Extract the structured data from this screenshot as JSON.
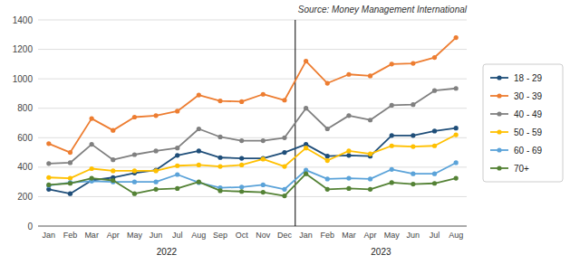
{
  "chart_data": {
    "type": "line",
    "title": "Source: Money Management International",
    "categories": [
      "Jan",
      "Feb",
      "Mar",
      "Apr",
      "May",
      "Jun",
      "Jul",
      "Aug",
      "Sep",
      "Oct",
      "Nov",
      "Dec",
      "Jan",
      "Feb",
      "Mar",
      "Apr",
      "May",
      "Jun",
      "Jul",
      "Aug"
    ],
    "series": [
      {
        "name": "18 - 29",
        "color": "#1f4e79",
        "values": [
          250,
          220,
          310,
          330,
          360,
          380,
          480,
          510,
          465,
          460,
          460,
          500,
          555,
          475,
          480,
          475,
          615,
          615,
          645,
          665
        ]
      },
      {
        "name": "30 - 39",
        "color": "#ed7d31",
        "values": [
          560,
          500,
          730,
          650,
          740,
          750,
          780,
          890,
          850,
          845,
          895,
          855,
          1120,
          970,
          1030,
          1020,
          1100,
          1105,
          1145,
          1280
        ]
      },
      {
        "name": "40 - 49",
        "color": "#808080",
        "values": [
          425,
          430,
          555,
          450,
          485,
          510,
          530,
          660,
          605,
          580,
          580,
          600,
          800,
          660,
          750,
          720,
          820,
          825,
          920,
          935
        ]
      },
      {
        "name": "50 - 59",
        "color": "#ffc000",
        "values": [
          330,
          325,
          390,
          375,
          375,
          375,
          410,
          415,
          405,
          415,
          455,
          405,
          530,
          445,
          510,
          490,
          545,
          540,
          545,
          620
        ]
      },
      {
        "name": "60 - 69",
        "color": "#5ba3d9",
        "values": [
          275,
          295,
          305,
          300,
          300,
          300,
          350,
          295,
          260,
          265,
          280,
          250,
          380,
          320,
          325,
          320,
          385,
          355,
          355,
          430
        ]
      },
      {
        "name": "70+",
        "color": "#548235",
        "values": [
          280,
          290,
          325,
          310,
          220,
          250,
          255,
          300,
          240,
          235,
          230,
          205,
          355,
          250,
          255,
          250,
          295,
          285,
          290,
          325
        ]
      }
    ],
    "annotations": [
      {
        "text": "2022",
        "from": 0,
        "to": 11
      },
      {
        "text": "2023",
        "from": 12,
        "to": 19
      }
    ],
    "ylim": [
      0,
      1400
    ],
    "yticks": [
      0,
      200,
      400,
      600,
      800,
      1000,
      1200,
      1400
    ],
    "grid": true,
    "legend": "right",
    "marker": "circle"
  }
}
